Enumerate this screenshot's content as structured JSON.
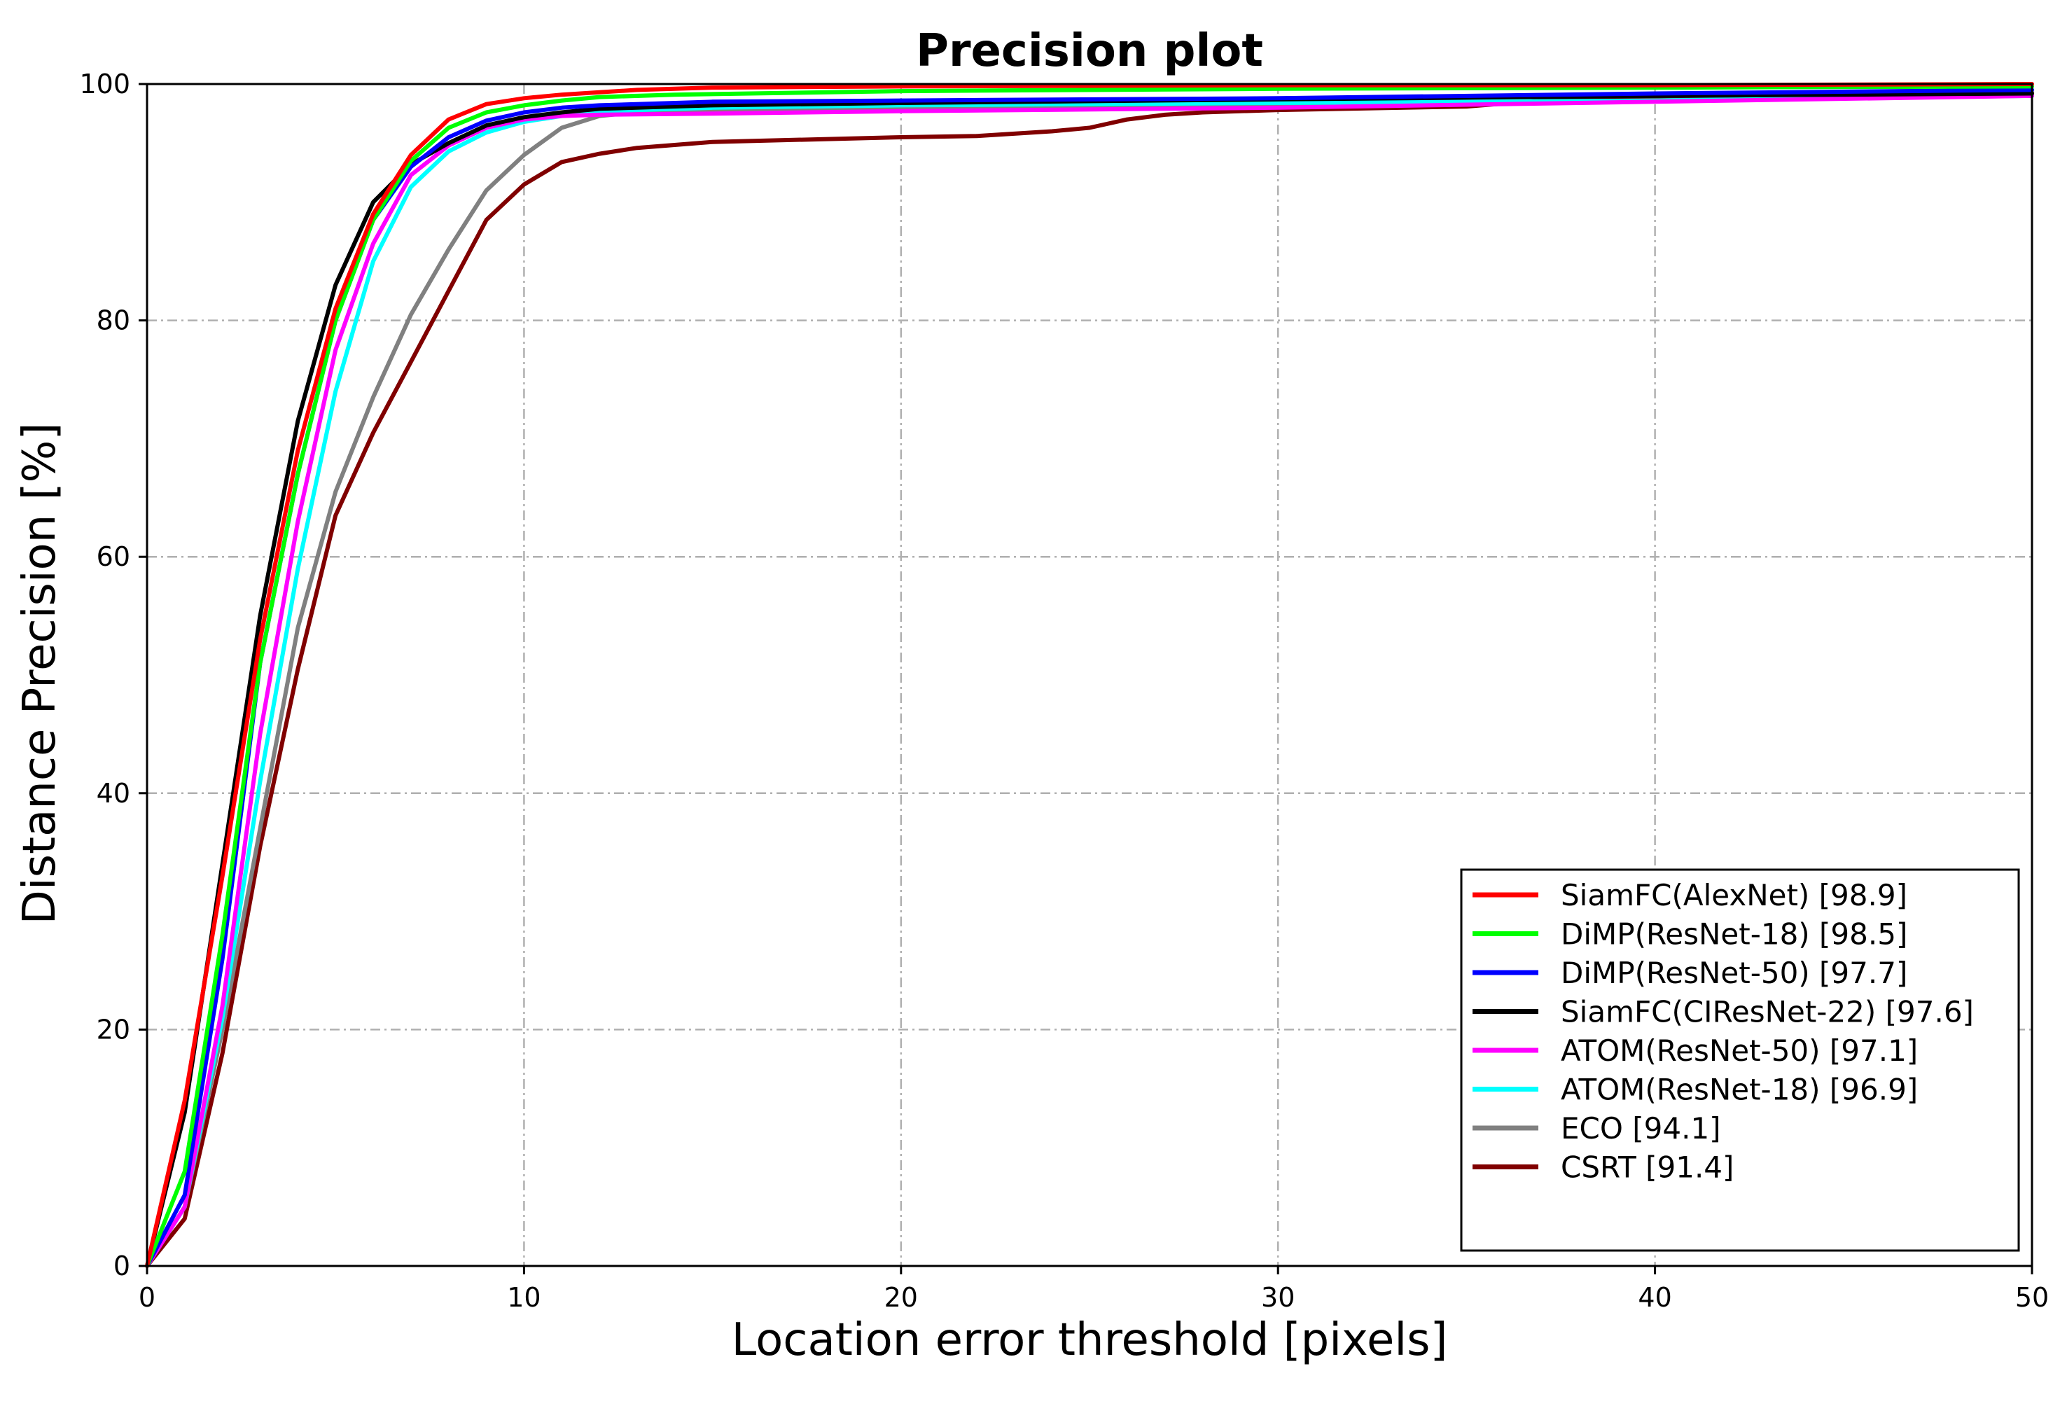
{
  "chart_data": {
    "type": "line",
    "title": "Precision plot",
    "xlabel": "Location error threshold [pixels]",
    "ylabel": "Distance Precision [%]",
    "xlim": [
      0,
      50
    ],
    "ylim": [
      0,
      100
    ],
    "xticks": [
      0,
      10,
      20,
      30,
      40,
      50
    ],
    "yticks": [
      0,
      20,
      40,
      60,
      80,
      100
    ],
    "grid": true,
    "legend_position": "lower-right",
    "series": [
      {
        "name": "SiamFC(AlexNet) [98.9]",
        "color": "#ff0000",
        "x": [
          0,
          1,
          2,
          3,
          4,
          5,
          6,
          7,
          8,
          9,
          10,
          11,
          12,
          13,
          15,
          20,
          30,
          40,
          50
        ],
        "y": [
          0,
          14,
          33,
          53,
          69,
          81,
          89,
          94,
          97,
          98.3,
          98.8,
          99.1,
          99.3,
          99.5,
          99.7,
          99.8,
          99.9,
          99.9,
          100
        ]
      },
      {
        "name": "DiMP(ResNet-18) [98.5]",
        "color": "#00ff00",
        "x": [
          0,
          1,
          2,
          3,
          4,
          5,
          6,
          7,
          8,
          9,
          10,
          11,
          12,
          14,
          20,
          30,
          40,
          50
        ],
        "y": [
          0,
          8,
          28,
          51,
          67,
          80,
          88.5,
          93.5,
          96.3,
          97.6,
          98.2,
          98.6,
          98.9,
          99.1,
          99.4,
          99.6,
          99.7,
          99.8
        ]
      },
      {
        "name": "DiMP(ResNet-50) [97.7]",
        "color": "#0000ff",
        "x": [
          0,
          1,
          2,
          3,
          4,
          5,
          6,
          7,
          8,
          9,
          10,
          11,
          12,
          15,
          20,
          30,
          40,
          50
        ],
        "y": [
          0,
          6,
          26,
          51,
          67,
          80,
          88.5,
          93,
          95.5,
          96.9,
          97.6,
          98,
          98.2,
          98.5,
          98.6,
          98.8,
          99.2,
          99.5
        ]
      },
      {
        "name": "SiamFC(CIResNet-22) [97.6]",
        "color": "#000000",
        "x": [
          0,
          1,
          2,
          3,
          4,
          5,
          6,
          7,
          8,
          9,
          10,
          11,
          12,
          15,
          20,
          30,
          40,
          50
        ],
        "y": [
          0,
          13,
          34,
          55,
          71.5,
          83,
          90,
          93.2,
          95,
          96.5,
          97.2,
          97.6,
          97.9,
          98.2,
          98.4,
          98.7,
          99,
          99.2
        ]
      },
      {
        "name": "ATOM(ResNet-50) [97.1]",
        "color": "#ff00ff",
        "x": [
          0,
          1,
          2,
          3,
          4,
          5,
          6,
          7,
          8,
          9,
          10,
          11,
          12,
          15,
          20,
          30,
          40,
          50
        ],
        "y": [
          0,
          5,
          22,
          45,
          63,
          77.5,
          86.5,
          92.3,
          94.8,
          96.3,
          97,
          97.3,
          97.4,
          97.5,
          97.7,
          98,
          98.5,
          99
        ]
      },
      {
        "name": "ATOM(ResNet-18) [96.9]",
        "color": "#00ffff",
        "x": [
          0,
          1,
          2,
          3,
          4,
          5,
          6,
          7,
          8,
          9,
          10,
          11,
          12,
          15,
          20,
          30,
          40,
          50
        ],
        "y": [
          0,
          5,
          21,
          41,
          59,
          74,
          85,
          91.3,
          94.3,
          95.9,
          96.8,
          97.3,
          97.7,
          98,
          98.2,
          98.4,
          98.6,
          99
        ]
      },
      {
        "name": "ECO [94.1]",
        "color": "#808080",
        "x": [
          0,
          1,
          2,
          3,
          4,
          5,
          6,
          7,
          8,
          9,
          10,
          11,
          12,
          13,
          15,
          20,
          30,
          40,
          50
        ],
        "y": [
          0,
          5,
          20,
          37,
          54,
          65.5,
          73.5,
          80.5,
          86,
          91,
          94,
          96.3,
          97.3,
          97.6,
          97.8,
          97.9,
          98.1,
          98.6,
          99.3
        ]
      },
      {
        "name": "CSRT [91.4]",
        "color": "#800000",
        "x": [
          0,
          1,
          2,
          3,
          4,
          5,
          6,
          7,
          8,
          9,
          10,
          11,
          12,
          13,
          15,
          20,
          22,
          24,
          25,
          26,
          27,
          28,
          30,
          35,
          37,
          40,
          50
        ],
        "y": [
          0,
          4,
          18,
          35.5,
          50.5,
          63.5,
          70.5,
          76.5,
          82.5,
          88.5,
          91.5,
          93.4,
          94.1,
          94.6,
          95.1,
          95.5,
          95.6,
          96,
          96.3,
          97,
          97.4,
          97.6,
          97.8,
          98.1,
          98.6,
          98.7,
          99.2
        ]
      }
    ]
  }
}
